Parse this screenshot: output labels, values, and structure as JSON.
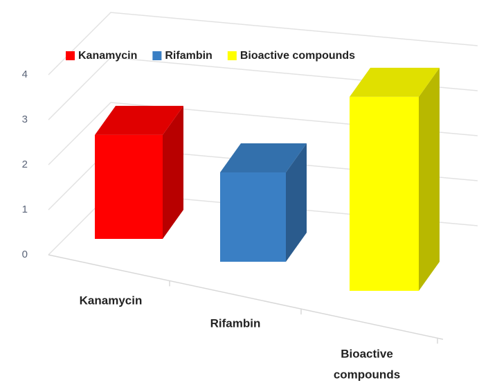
{
  "chart_data": {
    "type": "bar3d",
    "categories": [
      "Kanamycin",
      "Rifambin",
      [
        "Bioactive",
        "compounds"
      ]
    ],
    "series": [
      {
        "name": "Kanamycin",
        "color": "#ff0000"
      },
      {
        "name": "Rifambin",
        "color": "#3a7fc4"
      },
      {
        "name": "Bioactive compounds",
        "color": "#ffff00"
      }
    ],
    "values": [
      2.2,
      1.8,
      3.6
    ],
    "ylim": [
      0,
      4
    ],
    "yticks": [
      0,
      1,
      2,
      3,
      4
    ],
    "grid": true,
    "legend": "top"
  }
}
